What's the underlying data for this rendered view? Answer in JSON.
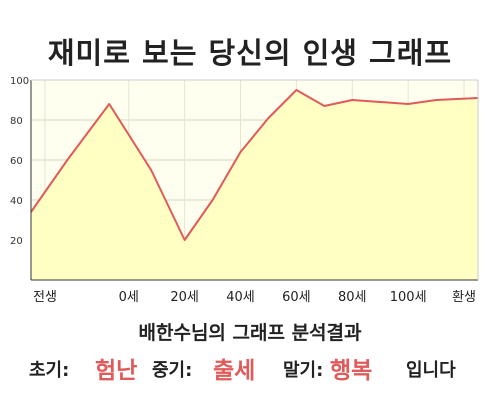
{
  "title": "재미로 보는 당신의 인생 그래프",
  "chart_data": {
    "type": "area",
    "x": [
      "전생",
      "0세",
      "20세",
      "40세",
      "60세",
      "80세",
      "100세",
      "환생"
    ],
    "x_tick_values": [
      -30,
      0,
      20,
      40,
      60,
      80,
      100,
      120
    ],
    "xlim": [
      -35,
      125
    ],
    "ylim": [
      0,
      100
    ],
    "y_ticks": [
      "20",
      "40",
      "60",
      "80",
      "100"
    ],
    "grid": true,
    "series": [
      {
        "values": [
          [
            -35,
            34
          ],
          [
            -22,
            60
          ],
          [
            -7,
            88
          ],
          [
            8,
            55
          ],
          [
            20,
            20
          ],
          [
            30,
            40
          ],
          [
            40,
            64
          ],
          [
            50,
            81
          ],
          [
            60,
            95
          ],
          [
            70,
            87
          ],
          [
            80,
            90
          ],
          [
            90,
            89
          ],
          [
            100,
            88
          ],
          [
            110,
            90
          ],
          [
            125,
            91
          ]
        ]
      }
    ],
    "line_color": "#e05a5a",
    "fill_color": "#ffffc4",
    "plot_background": "#fffff0"
  },
  "analysis": {
    "title": "배한수님의 그래프 분석결과",
    "early_label": "초기:",
    "early_value": "험난",
    "mid_label": "중기:",
    "mid_value": "출세",
    "late_label": "말기:",
    "late_value": "행복",
    "ending": "입니다"
  }
}
